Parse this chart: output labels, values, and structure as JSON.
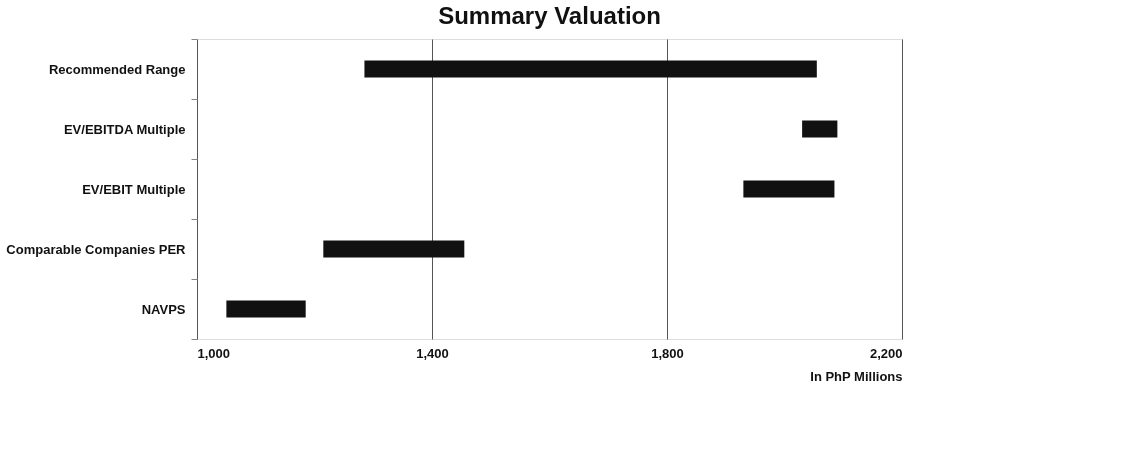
{
  "chart_data": {
    "type": "bar",
    "title": "Summary Valuation",
    "xlabel": "In PhP Millions",
    "orientation": "horizontal",
    "categories": [
      "Recommended Range",
      "EV/EBITDA Multiple",
      "EV/EBIT Multiple",
      "Comparable Companies PER",
      "NAVPS"
    ],
    "base": [
      1285,
      2030,
      1930,
      1215,
      1050
    ],
    "values": [
      770,
      60,
      155,
      240,
      135
    ],
    "color": "#111111",
    "xlim": [
      1000,
      2200
    ],
    "xticks": [
      {
        "value": 1000,
        "label": "1,000"
      },
      {
        "value": 1400,
        "label": "1,400"
      },
      {
        "value": 1800,
        "label": "1,800"
      },
      {
        "value": 2200,
        "label": "2,200"
      }
    ],
    "grid": "x"
  }
}
